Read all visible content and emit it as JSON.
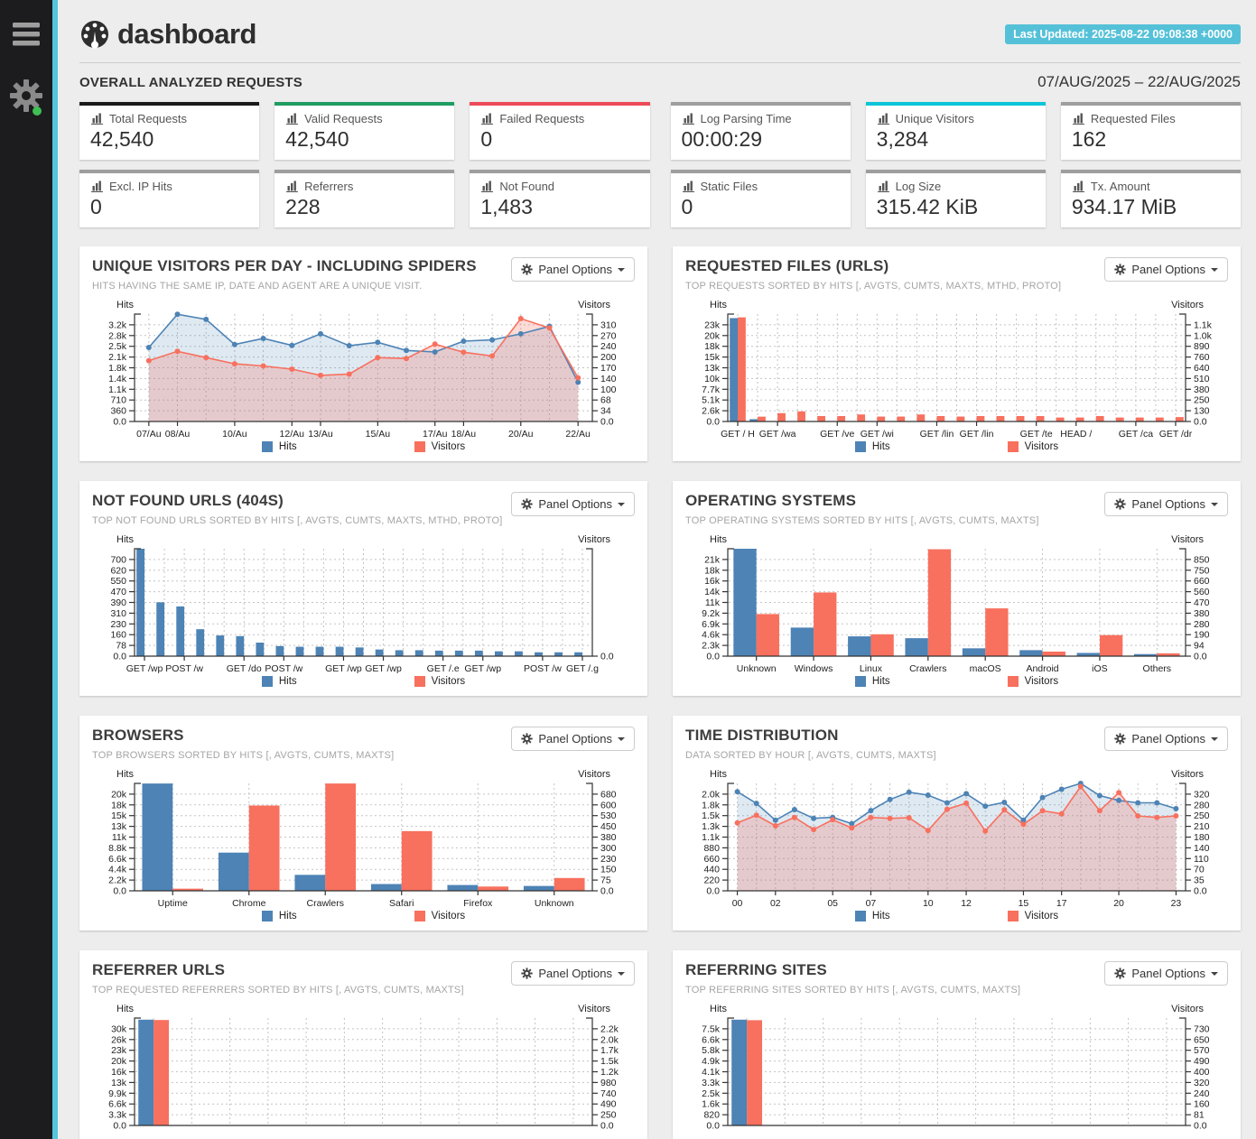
{
  "header": {
    "title": "dashboard",
    "last_updated": "Last Updated: 2025-08-22 09:08:38 +0000"
  },
  "sidebar": {
    "menu_icon": "hamburger-icon",
    "settings_icon": "gear-icon",
    "status": "online-green-dot"
  },
  "overview": {
    "title": "OVERALL ANALYZED REQUESTS",
    "date_range": "07/AUG/2025 – 22/AUG/2025",
    "card_groups": [
      {
        "cards": [
          {
            "label": "Total Requests",
            "value": "42,540",
            "accent": "#1b1b1b"
          },
          {
            "label": "Valid Requests",
            "value": "42,540",
            "accent": "#1f9d61"
          },
          {
            "label": "Failed Requests",
            "value": "0",
            "accent": "#ec4a58"
          },
          {
            "label": "Excl. IP Hits",
            "value": "0",
            "accent": "#9e9e9e"
          },
          {
            "label": "Referrers",
            "value": "228",
            "accent": "#9e9e9e"
          },
          {
            "label": "Not Found",
            "value": "1,483",
            "accent": "#9e9e9e"
          }
        ]
      },
      {
        "cards": [
          {
            "label": "Log Parsing Time",
            "value": "00:00:29",
            "accent": "#9e9e9e"
          },
          {
            "label": "Unique Visitors",
            "value": "3,284",
            "accent": "#0cc5d8"
          },
          {
            "label": "Requested Files",
            "value": "162",
            "accent": "#9e9e9e"
          },
          {
            "label": "Static Files",
            "value": "0",
            "accent": "#9e9e9e"
          },
          {
            "label": "Log Size",
            "value": "315.42 KiB",
            "accent": "#9e9e9e"
          },
          {
            "label": "Tx. Amount",
            "value": "934.17 MiB",
            "accent": "#9e9e9e"
          }
        ]
      }
    ]
  },
  "panel_options_label": "Panel Options",
  "colors": {
    "hits": "#4d83b5",
    "visitors": "#f8705e",
    "hits_area": "rgba(77,131,181,0.18)",
    "visitors_area": "rgba(248,112,94,0.25)",
    "grid": "#c3c3c3",
    "axis": "#333333",
    "accent_strip": "#55c6dd",
    "badge": "#55c1d8"
  },
  "chart_data": [
    {
      "slug": "unique-visitors",
      "title": "UNIQUE VISITORS PER DAY - INCLUDING SPIDERS",
      "subtitle": "HITS HAVING THE SAME IP, DATE AND AGENT ARE A UNIQUE VISIT.",
      "type": "area",
      "left_axis_label": "Hits",
      "right_axis_label": "Visitors",
      "yticks_left": [
        "3.2k",
        "2.8k",
        "2.5k",
        "2.1k",
        "1.8k",
        "1.4k",
        "1.1k",
        "710",
        "360",
        "0.0"
      ],
      "left_top_value": 3200,
      "yticks_right": [
        "310",
        "270",
        "240",
        "200",
        "170",
        "140",
        "100",
        "68",
        "34",
        "0.0"
      ],
      "right_top_value": 310,
      "xlabels": [
        "07/Au",
        "08/Au",
        "",
        "10/Au",
        "",
        "12/Au",
        "13/Au",
        "",
        "15/Au",
        "",
        "17/Au",
        "18/Au",
        "",
        "20/Au",
        "",
        "22/Au"
      ],
      "series": [
        {
          "name": "Hits",
          "axis": "left",
          "values": [
            2450,
            3550,
            3380,
            2550,
            2750,
            2520,
            2900,
            2510,
            2620,
            2350,
            2300,
            2660,
            2700,
            2900,
            3150,
            1300
          ]
        },
        {
          "name": "Visitors",
          "axis": "right",
          "values": [
            195,
            225,
            205,
            185,
            178,
            168,
            148,
            152,
            205,
            202,
            248,
            222,
            210,
            330,
            300,
            140
          ]
        }
      ]
    },
    {
      "slug": "requested-files",
      "title": "REQUESTED FILES (URLS)",
      "subtitle": "TOP REQUESTS SORTED BY HITS [, AVGTS, CUMTS, MAXTS, MTHD, PROTO]",
      "type": "bar",
      "left_axis_label": "Hits",
      "right_axis_label": "Visitors",
      "yticks_left": [
        "23k",
        "20k",
        "18k",
        "15k",
        "13k",
        "10k",
        "7.7k",
        "5.1k",
        "2.6k",
        "0.0"
      ],
      "left_top_value": 23000,
      "yticks_right": [
        "1.1k",
        "1.0k",
        "890",
        "760",
        "640",
        "510",
        "380",
        "250",
        "130",
        "0.0"
      ],
      "right_top_value": 1100,
      "xlabels": [
        "GET / H",
        "",
        "GET /wa",
        "",
        "",
        "GET /ve",
        "",
        "GET /wi",
        "",
        "",
        "GET /lin",
        "",
        "GET /lin",
        "",
        "",
        "GET /te",
        "",
        "HEAD /",
        "",
        "",
        "GET /ca",
        "",
        "GET /dr"
      ],
      "series": [
        {
          "name": "Hits",
          "axis": "left",
          "values": [
            24600,
            550,
            0,
            0,
            0,
            0,
            0,
            0,
            0,
            0,
            0,
            0,
            0,
            0,
            0,
            0,
            0,
            0,
            0,
            0,
            0,
            0,
            0
          ]
        },
        {
          "name": "Visitors",
          "axis": "right",
          "values": [
            1185,
            55,
            95,
            115,
            62,
            62,
            80,
            56,
            56,
            80,
            62,
            56,
            62,
            62,
            62,
            62,
            45,
            45,
            62,
            45,
            45,
            45,
            50
          ]
        }
      ]
    },
    {
      "slug": "not-found-urls",
      "title": "NOT FOUND URLS (404S)",
      "subtitle": "TOP NOT FOUND URLS SORTED BY HITS [, AVGTS, CUMTS, MAXTS, MTHD, PROTO]",
      "type": "bar",
      "left_axis_label": "Hits",
      "right_axis_label": "Visitors",
      "yticks_left": [
        "700",
        "620",
        "550",
        "470",
        "390",
        "310",
        "230",
        "160",
        "78",
        "0.0"
      ],
      "left_top_value": 700,
      "yticks_right": [
        "",
        "",
        "",
        "",
        "",
        "",
        "",
        "",
        "",
        "0.0"
      ],
      "right_top_value": 0,
      "xlabels": [
        "GET /wp",
        "",
        "POST /w",
        "",
        "",
        "GET /do",
        "",
        "POST /w",
        "",
        "",
        "GET /wp",
        "",
        "GET /wp",
        "",
        "",
        "GET /.e",
        "",
        "GET /wp",
        "",
        "",
        "POST /w",
        "",
        "GET /.g"
      ],
      "series": [
        {
          "name": "Hits",
          "axis": "left",
          "values": [
            790,
            390,
            360,
            195,
            150,
            145,
            98,
            73,
            68,
            68,
            68,
            63,
            48,
            43,
            43,
            40,
            40,
            40,
            35,
            35,
            28,
            28,
            28
          ]
        },
        {
          "name": "Visitors",
          "axis": "right",
          "values": [
            0,
            0,
            0,
            0,
            0,
            0,
            0,
            0,
            0,
            0,
            0,
            0,
            0,
            0,
            0,
            0,
            0,
            0,
            0,
            0,
            0,
            0,
            0
          ]
        }
      ]
    },
    {
      "slug": "operating-systems",
      "title": "OPERATING SYSTEMS",
      "subtitle": "TOP OPERATING SYSTEMS SORTED BY HITS [, AVGTS, CUMTS, MAXTS]",
      "type": "bar",
      "left_axis_label": "Hits",
      "right_axis_label": "Visitors",
      "yticks_left": [
        "21k",
        "18k",
        "16k",
        "14k",
        "11k",
        "9.2k",
        "6.9k",
        "4.6k",
        "2.3k",
        "0.0"
      ],
      "left_top_value": 21000,
      "yticks_right": [
        "850",
        "750",
        "660",
        "560",
        "470",
        "380",
        "280",
        "190",
        "94",
        "0.0"
      ],
      "right_top_value": 850,
      "xlabels": [
        "Unknown",
        "Windows",
        "Linux",
        "Crawlers",
        "macOS",
        "Android",
        "iOS",
        "Others"
      ],
      "series": [
        {
          "name": "Hits",
          "axis": "left",
          "values": [
            23400,
            6200,
            4300,
            3900,
            1700,
            1300,
            700,
            450
          ]
        },
        {
          "name": "Visitors",
          "axis": "right",
          "values": [
            370,
            560,
            192,
            940,
            420,
            40,
            185,
            25
          ]
        }
      ]
    },
    {
      "slug": "browsers",
      "title": "BROWSERS",
      "subtitle": "TOP BROWSERS SORTED BY HITS [, AVGTS, CUMTS, MAXTS]",
      "type": "bar",
      "left_axis_label": "Hits",
      "right_axis_label": "Visitors",
      "yticks_left": [
        "20k",
        "18k",
        "15k",
        "13k",
        "11k",
        "8.8k",
        "6.6k",
        "4.4k",
        "2.2k",
        "0.0"
      ],
      "left_top_value": 20000,
      "yticks_right": [
        "680",
        "600",
        "530",
        "450",
        "380",
        "300",
        "230",
        "150",
        "75",
        "0.0"
      ],
      "right_top_value": 680,
      "xlabels": [
        "Uptime",
        "Chrome",
        "Crawlers",
        "Safari",
        "Firefox",
        "Unknown"
      ],
      "series": [
        {
          "name": "Hits",
          "axis": "left",
          "values": [
            22200,
            7900,
            3300,
            1400,
            1200,
            1000
          ]
        },
        {
          "name": "Visitors",
          "axis": "right",
          "values": [
            15,
            600,
            755,
            420,
            30,
            90
          ]
        }
      ]
    },
    {
      "slug": "time-distribution",
      "title": "TIME DISTRIBUTION",
      "subtitle": "DATA SORTED BY HOUR [, AVGTS, CUMTS, MAXTS]",
      "type": "area",
      "left_axis_label": "Hits",
      "right_axis_label": "Visitors",
      "yticks_left": [
        "2.0k",
        "1.8k",
        "1.5k",
        "1.3k",
        "1.1k",
        "880",
        "660",
        "440",
        "220",
        "0.0"
      ],
      "left_top_value": 2000,
      "yticks_right": [
        "320",
        "280",
        "250",
        "210",
        "180",
        "140",
        "110",
        "70",
        "35",
        "0.0"
      ],
      "right_top_value": 320,
      "xlabels": [
        "00",
        "",
        "02",
        "",
        "",
        "05",
        "",
        "07",
        "",
        "",
        "10",
        "",
        "12",
        "",
        "",
        "15",
        "",
        "17",
        "",
        "",
        "20",
        "",
        "",
        "23"
      ],
      "series": [
        {
          "name": "Hits",
          "axis": "left",
          "values": [
            2050,
            1810,
            1460,
            1680,
            1500,
            1520,
            1390,
            1660,
            1890,
            2040,
            1980,
            1820,
            2010,
            1750,
            1830,
            1460,
            1930,
            2100,
            2250,
            1970,
            1870,
            1820,
            1820,
            1700
          ]
        },
        {
          "name": "Visitors",
          "axis": "right",
          "values": [
            225,
            250,
            215,
            243,
            203,
            235,
            208,
            243,
            240,
            242,
            200,
            270,
            290,
            198,
            268,
            220,
            265,
            255,
            345,
            265,
            325,
            248,
            243,
            248
          ]
        }
      ]
    },
    {
      "slug": "referrer-urls",
      "title": "REFERRER URLS",
      "subtitle": "TOP REQUESTED REFERRERS SORTED BY HITS [, AVGTS, CUMTS, MAXTS]",
      "type": "bar",
      "left_axis_label": "Hits",
      "right_axis_label": "Visitors",
      "yticks_left": [
        "30k",
        "26k",
        "23k",
        "20k",
        "16k",
        "13k",
        "9.9k",
        "6.6k",
        "3.3k",
        "0.0"
      ],
      "left_top_value": 29700,
      "yticks_right": [
        "2.2k",
        "2.0k",
        "1.7k",
        "1.5k",
        "1.2k",
        "980",
        "740",
        "490",
        "250",
        "0.0"
      ],
      "right_top_value": 2200,
      "xlabels": [
        "",
        "",
        "",
        "",
        "",
        "",
        "",
        "",
        "",
        "",
        "",
        ""
      ],
      "series": [
        {
          "name": "Hits",
          "axis": "left",
          "values": [
            32500,
            0,
            0,
            0,
            0,
            0,
            0,
            0,
            0,
            0,
            0,
            0
          ]
        },
        {
          "name": "Visitors",
          "axis": "right",
          "values": [
            2400,
            0,
            0,
            0,
            0,
            0,
            0,
            0,
            0,
            0,
            0,
            0
          ]
        }
      ]
    },
    {
      "slug": "referring-sites",
      "title": "REFERRING SITES",
      "subtitle": "TOP REFERRING SITES SORTED BY HITS [, AVGTS, CUMTS, MAXTS]",
      "type": "bar",
      "left_axis_label": "Hits",
      "right_axis_label": "Visitors",
      "yticks_left": [
        "7.5k",
        "6.6k",
        "5.8k",
        "4.9k",
        "4.1k",
        "3.3k",
        "2.5k",
        "1.6k",
        "820",
        "0.0"
      ],
      "left_top_value": 7400,
      "yticks_right": [
        "730",
        "650",
        "570",
        "490",
        "400",
        "320",
        "240",
        "160",
        "81",
        "0.0"
      ],
      "right_top_value": 730,
      "xlabels": [
        "",
        "",
        "",
        "",
        "",
        "",
        "",
        "",
        "",
        "",
        "",
        ""
      ],
      "series": [
        {
          "name": "Hits",
          "axis": "left",
          "values": [
            8100,
            0,
            0,
            0,
            0,
            0,
            0,
            0,
            0,
            0,
            0,
            0
          ]
        },
        {
          "name": "Visitors",
          "axis": "right",
          "values": [
            795,
            0,
            0,
            0,
            0,
            0,
            0,
            0,
            0,
            0,
            0,
            0
          ]
        }
      ]
    }
  ]
}
